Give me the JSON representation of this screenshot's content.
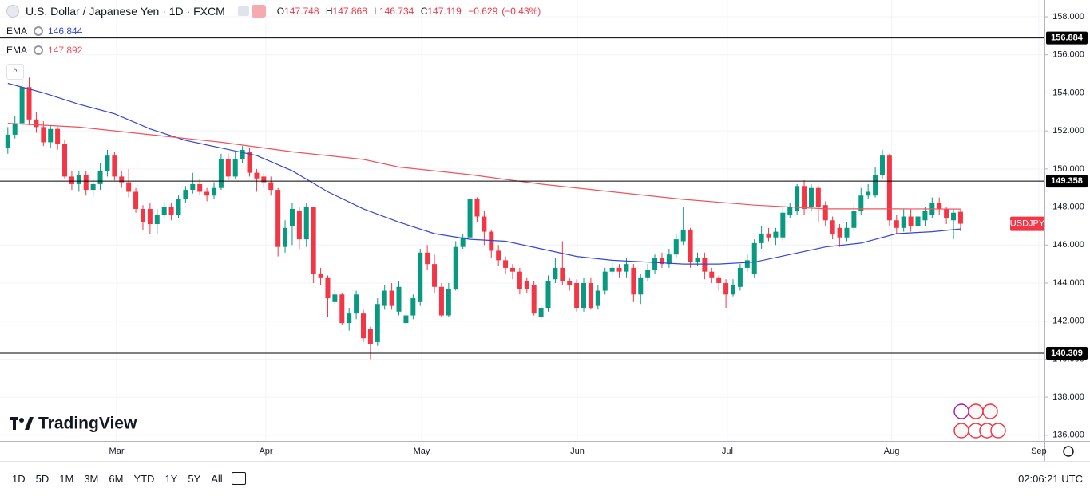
{
  "header": {
    "symbol": "U.S. Dollar / Japanese Yen · 1D · FXCM",
    "o": "O",
    "h": "H",
    "l": "L",
    "c": "C",
    "change": "−0.629",
    "change_pct": "(−0.43%)"
  },
  "brand": "TradingView",
  "toolbar": {
    "ranges": [
      "1D",
      "5D",
      "1M",
      "3M",
      "6M",
      "YTD",
      "1Y",
      "5Y",
      "All"
    ],
    "time": "02:06:21 UTC"
  },
  "chart_data": {
    "type": "candlestick",
    "up_color": "#089981",
    "down_color": "#f23645",
    "grid": true,
    "open": [
      151.1,
      151.8,
      152.4,
      154.3,
      152.6,
      152.2,
      151.4,
      152.1,
      151.3,
      149.6,
      149.2,
      149.7,
      148.9,
      149.2,
      149.9,
      150.7,
      149.6,
      149.3,
      148.8,
      147.9,
      147.9,
      147.1,
      147.6,
      148.0,
      147.6,
      148.4,
      148.9,
      149.2,
      148.8,
      148.6,
      149.0,
      150.5,
      149.6,
      150.5,
      150.9,
      149.8,
      149.6,
      149.3,
      148.9,
      145.9,
      147.0,
      147.8,
      146.3,
      148.0,
      144.5,
      144.3,
      143.0,
      143.4,
      141.9,
      142.4,
      142.4,
      141.6,
      140.9,
      142.8,
      143.6,
      142.5,
      141.9,
      142.3,
      143.0,
      145.6,
      145.0,
      143.8,
      142.3,
      143.7,
      145.9,
      146.4,
      148.4,
      147.5,
      146.7,
      145.7,
      145.2,
      144.8,
      144.6,
      144.1,
      143.9,
      142.2,
      142.7,
      144.2,
      144.8,
      144.1,
      144.0,
      142.7,
      144.0,
      142.8,
      143.6,
      144.6,
      144.8,
      144.6,
      144.8,
      143.4,
      144.3,
      144.7,
      145.3,
      145.0,
      145.5,
      146.2,
      146.8,
      145.1,
      145.3,
      144.6,
      144.3,
      144.0,
      143.4,
      143.8,
      144.8,
      144.5,
      146.1,
      146.6,
      146.4,
      146.4,
      147.6,
      147.8,
      149.1,
      148.0,
      149.0,
      148.1,
      147.3,
      146.9,
      146.4,
      146.9,
      147.8,
      148.6,
      148.6,
      149.7,
      150.7,
      147.3,
      146.9,
      147.5,
      147.0,
      147.3,
      147.6,
      148.2,
      147.9,
      147.3,
      147.748
    ],
    "high": [
      152.2,
      152.8,
      154.7,
      154.8,
      153.0,
      152.5,
      152.3,
      152.2,
      151.5,
      149.9,
      149.9,
      149.9,
      149.5,
      150.3,
      151.0,
      150.9,
      149.9,
      150.0,
      149.0,
      148.1,
      148.2,
      147.9,
      148.3,
      148.2,
      148.6,
      149.1,
      149.8,
      149.5,
      149.0,
      149.3,
      150.8,
      150.8,
      150.9,
      151.2,
      151.1,
      150.0,
      149.8,
      149.6,
      149.0,
      147.3,
      148.2,
      148.0,
      148.2,
      148.0,
      144.8,
      144.4,
      143.7,
      143.5,
      142.7,
      143.6,
      142.6,
      141.7,
      143.2,
      143.9,
      144.0,
      144.1,
      142.6,
      143.4,
      145.8,
      146.0,
      145.5,
      144.0,
      144.0,
      146.2,
      146.6,
      148.6,
      148.5,
      147.8,
      146.8,
      146.0,
      145.4,
      145.0,
      144.8,
      144.3,
      144.1,
      142.8,
      144.4,
      145.3,
      146.2,
      144.3,
      144.2,
      144.3,
      144.3,
      143.9,
      144.8,
      145.1,
      145.0,
      145.3,
      145.0,
      144.5,
      145.0,
      145.5,
      145.6,
      145.8,
      146.6,
      148.0,
      146.9,
      145.6,
      145.6,
      144.8,
      144.4,
      144.2,
      144.2,
      145.0,
      145.5,
      146.3,
      147.0,
      146.9,
      146.9,
      148.0,
      148.2,
      149.2,
      149.4,
      149.2,
      149.1,
      148.3,
      147.5,
      147.1,
      147.2,
      148.1,
      149.0,
      149.2,
      150.1,
      151.0,
      150.8,
      147.6,
      147.9,
      147.9,
      147.8,
      148.0,
      148.5,
      148.5,
      148.0,
      147.9,
      147.868
    ],
    "low": [
      150.8,
      151.6,
      152.2,
      152.3,
      151.9,
      151.2,
      151.1,
      151.0,
      149.5,
      148.9,
      148.8,
      148.6,
      148.5,
      148.9,
      149.6,
      149.4,
      149.0,
      148.5,
      147.7,
      146.8,
      146.6,
      146.6,
      147.4,
      147.3,
      147.4,
      148.2,
      148.7,
      148.6,
      148.3,
      148.4,
      148.9,
      149.4,
      149.5,
      150.3,
      149.6,
      148.8,
      149.0,
      148.6,
      145.4,
      145.6,
      146.0,
      145.8,
      145.9,
      144.0,
      143.9,
      142.2,
      142.9,
      141.8,
      141.5,
      142.1,
      140.9,
      140.0,
      140.7,
      142.6,
      142.6,
      142.3,
      141.7,
      142.1,
      142.8,
      144.7,
      143.5,
      142.2,
      142.2,
      143.6,
      145.8,
      146.3,
      147.2,
      146.0,
      145.3,
      144.9,
      144.5,
      144.2,
      143.4,
      143.5,
      142.3,
      142.1,
      142.5,
      144.0,
      143.9,
      143.6,
      142.5,
      142.5,
      142.6,
      142.6,
      143.4,
      144.4,
      144.3,
      144.3,
      143.0,
      142.9,
      144.1,
      144.5,
      144.8,
      144.8,
      145.3,
      146.0,
      144.8,
      144.9,
      144.2,
      144.0,
      143.6,
      142.7,
      143.3,
      143.6,
      144.6,
      144.3,
      145.8,
      146.2,
      146.0,
      146.2,
      147.4,
      147.6,
      147.6,
      147.8,
      147.2,
      147.0,
      146.3,
      145.9,
      146.2,
      146.7,
      147.6,
      148.4,
      148.5,
      149.5,
      147.0,
      146.6,
      146.7,
      146.7,
      146.7,
      147.0,
      147.4,
      147.6,
      147.1,
      146.3,
      146.734
    ],
    "close": [
      151.8,
      152.4,
      154.3,
      152.6,
      152.2,
      151.4,
      152.1,
      151.3,
      149.6,
      149.2,
      149.7,
      148.9,
      149.2,
      149.9,
      150.7,
      149.6,
      149.3,
      148.8,
      147.9,
      147.2,
      147.1,
      147.6,
      148.0,
      147.6,
      148.4,
      148.9,
      149.2,
      148.8,
      148.6,
      149.0,
      150.5,
      149.6,
      150.5,
      151.0,
      149.8,
      149.5,
      149.3,
      148.9,
      145.9,
      146.9,
      147.9,
      146.3,
      148.0,
      144.5,
      144.3,
      143.2,
      143.4,
      141.9,
      142.4,
      143.4,
      141.1,
      140.8,
      142.9,
      143.6,
      142.8,
      143.8,
      142.3,
      143.2,
      145.6,
      145.0,
      143.8,
      142.3,
      143.7,
      145.9,
      146.4,
      148.4,
      147.5,
      146.7,
      145.7,
      145.2,
      144.8,
      144.6,
      143.7,
      143.7,
      142.4,
      142.7,
      144.1,
      144.8,
      144.1,
      143.9,
      142.7,
      144.0,
      142.7,
      143.6,
      144.6,
      144.8,
      144.6,
      145.0,
      143.4,
      144.3,
      144.7,
      145.3,
      145.0,
      145.5,
      146.3,
      146.8,
      145.1,
      145.3,
      144.6,
      144.3,
      144.0,
      143.4,
      143.9,
      144.8,
      145.2,
      146.1,
      146.6,
      146.4,
      146.7,
      147.7,
      148.0,
      149.1,
      147.9,
      149.0,
      148.0,
      147.3,
      146.6,
      146.4,
      146.9,
      147.8,
      148.6,
      148.8,
      149.7,
      150.7,
      147.3,
      146.9,
      147.5,
      147.0,
      147.5,
      147.8,
      148.2,
      147.9,
      147.4,
      147.7,
      147.119
    ],
    "series": [
      {
        "name": "EMA",
        "color": "#3446d6",
        "x": [
          0,
          5,
          10,
          15,
          20,
          25,
          30,
          35,
          40,
          45,
          50,
          55,
          60,
          65,
          70,
          75,
          80,
          85,
          90,
          95,
          100,
          105,
          110,
          115,
          120,
          125,
          130,
          134
        ],
        "values": [
          154.5,
          154.0,
          153.4,
          152.9,
          152.1,
          151.5,
          151.1,
          150.7,
          149.9,
          148.8,
          147.9,
          147.2,
          146.6,
          146.3,
          146.2,
          145.8,
          145.4,
          145.2,
          145.1,
          145.0,
          145.0,
          145.1,
          145.5,
          145.9,
          146.1,
          146.6,
          146.7,
          146.844
        ]
      },
      {
        "name": "EMA",
        "color": "#f0525e",
        "x": [
          0,
          10,
          20,
          30,
          40,
          50,
          55,
          65,
          75,
          85,
          95,
          105,
          115,
          125,
          134
        ],
        "values": [
          152.4,
          152.2,
          151.8,
          151.4,
          150.9,
          150.5,
          150.1,
          149.7,
          149.2,
          148.8,
          148.4,
          148.1,
          147.9,
          147.9,
          147.892
        ]
      }
    ],
    "xlim": [
      -1.1,
      145.8
    ],
    "xticks": [
      {
        "value": 15.3,
        "label": "Mar"
      },
      {
        "value": 36.3,
        "label": "Apr"
      },
      {
        "value": 58.2,
        "label": "May"
      },
      {
        "value": 80.1,
        "label": "Jun"
      },
      {
        "value": 101.2,
        "label": "Jul"
      },
      {
        "value": 124.3,
        "label": "Aug"
      },
      {
        "value": 145,
        "label": "Sep"
      }
    ],
    "ylim": [
      135.7,
      158.88
    ],
    "yticks": [
      {
        "value": 136,
        "label": "136.000"
      },
      {
        "value": 138,
        "label": "138.000"
      },
      {
        "value": 140,
        "label": "140.000"
      },
      {
        "value": 142,
        "label": "142.000"
      },
      {
        "value": 144,
        "label": "144.000"
      },
      {
        "value": 146,
        "label": "146.000"
      },
      {
        "value": 148,
        "label": "148.000"
      },
      {
        "value": 150,
        "label": "150.000"
      },
      {
        "value": 152,
        "label": "152.000"
      },
      {
        "value": 154,
        "label": "154.000"
      },
      {
        "value": 156,
        "label": "156.000"
      },
      {
        "value": 158,
        "label": "158.000"
      }
    ],
    "hlines": [
      156.884,
      149.358,
      140.309
    ],
    "symbol_label": "USDJPY"
  }
}
